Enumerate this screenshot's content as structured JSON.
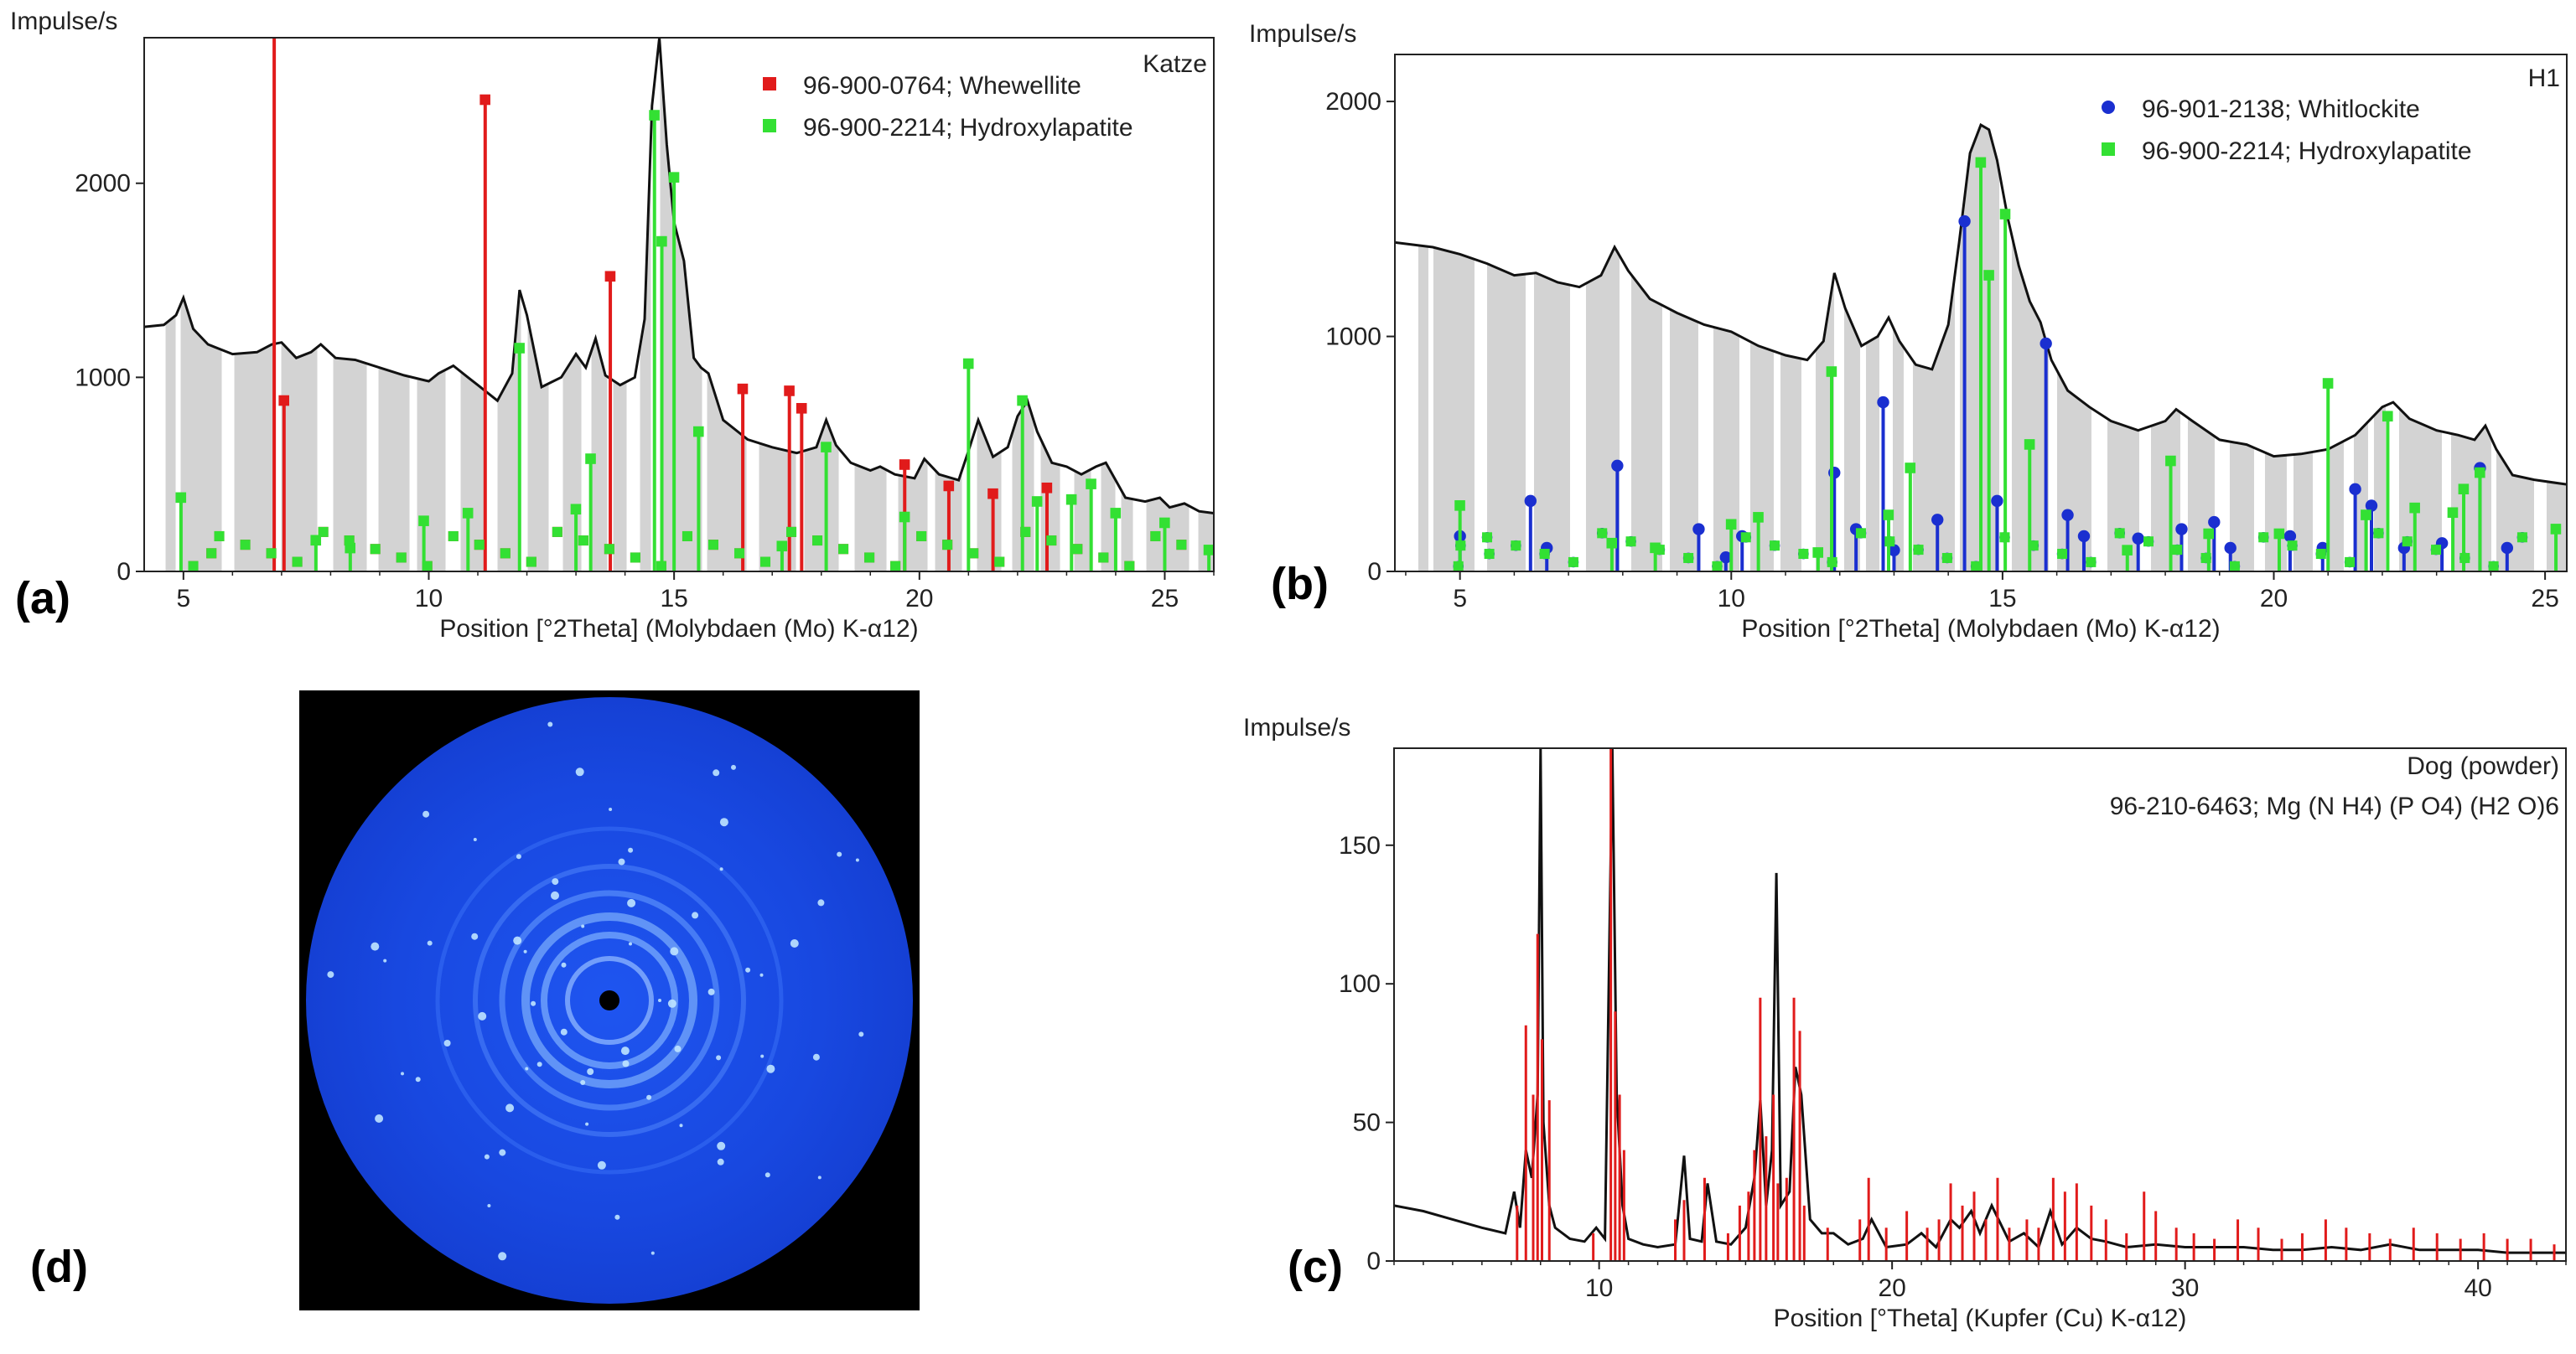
{
  "figure_labels": {
    "a": "(a)",
    "b": "(b)",
    "c": "(c)",
    "d": "(d)"
  },
  "colors": {
    "profile": "#111111",
    "fill": "#d3d3d3",
    "red": "#e11b1b",
    "green": "#33e033",
    "blue": "#1a2fd0",
    "ring_bg": "#1848e0"
  },
  "chart_data": [
    {
      "id": "a",
      "type": "line",
      "title": "Katze",
      "xlabel": "Position [°2Theta] (Molybdaen (Mo) K-α12)",
      "ylabel": "Impulse/s",
      "xlim": [
        4.2,
        26
      ],
      "ylim": [
        0,
        2750
      ],
      "xticks": [
        5,
        10,
        15,
        20,
        25
      ],
      "yticks": [
        0,
        1000,
        2000
      ],
      "legend": [
        {
          "label": "96-900-0764; Whewellite",
          "color": "#e11b1b",
          "marker": "square"
        },
        {
          "label": "96-900-2214; Hydroxylapatite",
          "color": "#33e033",
          "marker": "square"
        }
      ],
      "profile": {
        "x": [
          4.2,
          4.6,
          4.85,
          5.0,
          5.2,
          5.5,
          6,
          6.5,
          6.8,
          7.0,
          7.3,
          7.6,
          7.8,
          8.1,
          8.5,
          9,
          9.5,
          10,
          10.2,
          10.5,
          10.8,
          11,
          11.4,
          11.7,
          11.85,
          12.0,
          12.3,
          12.7,
          13.0,
          13.2,
          13.4,
          13.6,
          13.9,
          14.2,
          14.4,
          14.55,
          14.7,
          14.85,
          15.0,
          15.2,
          15.4,
          15.55,
          15.7,
          16,
          16.5,
          17,
          17.5,
          17.9,
          18.1,
          18.3,
          18.6,
          19,
          19.2,
          19.5,
          19.9,
          20.1,
          20.4,
          20.8,
          21.0,
          21.2,
          21.5,
          21.8,
          22.0,
          22.2,
          22.4,
          22.7,
          23,
          23.3,
          23.6,
          23.8,
          24,
          24.2,
          24.6,
          24.9,
          25.1,
          25.4,
          25.7,
          26
        ],
        "y": [
          1260,
          1270,
          1320,
          1410,
          1250,
          1170,
          1120,
          1130,
          1170,
          1180,
          1100,
          1130,
          1170,
          1100,
          1090,
          1050,
          1010,
          980,
          1020,
          1060,
          1000,
          960,
          880,
          1020,
          1450,
          1320,
          950,
          1000,
          1120,
          1050,
          1200,
          1010,
          960,
          1000,
          1300,
          2400,
          2750,
          2200,
          1800,
          1600,
          1100,
          1050,
          1020,
          780,
          680,
          640,
          610,
          640,
          780,
          650,
          560,
          520,
          540,
          500,
          480,
          580,
          500,
          470,
          620,
          780,
          590,
          640,
          800,
          880,
          720,
          560,
          540,
          500,
          540,
          560,
          470,
          380,
          360,
          380,
          330,
          350,
          310,
          300
        ]
      },
      "sticks": [
        {
          "color": "#e11b1b",
          "x": [
            6.85,
            7.05,
            11.15,
            13.7,
            16.4,
            17.35,
            17.6,
            19.7,
            20.6,
            21.5,
            22.6
          ],
          "y": [
            2850,
            880,
            2430,
            1520,
            940,
            930,
            840,
            550,
            440,
            400,
            430
          ]
        },
        {
          "color": "#33e033",
          "x": [
            4.95,
            7.7,
            8.4,
            9.9,
            10.8,
            11.85,
            13.0,
            13.3,
            14.6,
            14.75,
            15.0,
            15.5,
            17.2,
            18.1,
            19.7,
            21.0,
            22.1,
            22.4,
            23.1,
            23.5,
            24.0,
            25.0,
            25.9
          ],
          "y": [
            380,
            160,
            120,
            260,
            300,
            1150,
            320,
            580,
            2350,
            1700,
            2030,
            720,
            130,
            640,
            280,
            1070,
            880,
            360,
            370,
            450,
            300,
            250,
            110
          ]
        }
      ]
    },
    {
      "id": "b",
      "type": "line",
      "title": "H1",
      "xlabel": "Position [°2Theta] (Molybdaen (Mo) K-α12)",
      "ylabel": "Impulse/s",
      "xlim": [
        3.8,
        25.4
      ],
      "ylim": [
        0,
        2200
      ],
      "xticks": [
        5,
        10,
        15,
        20,
        25
      ],
      "yticks": [
        0,
        1000,
        2000
      ],
      "legend": [
        {
          "label": "96-901-2138; Whitlockite",
          "color": "#1a2fd0",
          "marker": "circle"
        },
        {
          "label": "96-900-2214; Hydroxylapatite",
          "color": "#33e033",
          "marker": "square"
        }
      ],
      "profile": {
        "x": [
          3.8,
          4.5,
          5.0,
          5.5,
          6.0,
          6.4,
          6.8,
          7.2,
          7.6,
          7.85,
          8.1,
          8.5,
          9,
          9.5,
          10,
          10.5,
          11,
          11.4,
          11.7,
          11.9,
          12.1,
          12.4,
          12.7,
          12.9,
          13.1,
          13.4,
          13.7,
          14.0,
          14.2,
          14.4,
          14.6,
          14.75,
          14.9,
          15.1,
          15.3,
          15.5,
          15.7,
          15.9,
          16.2,
          16.6,
          17,
          17.5,
          18,
          18.2,
          18.5,
          19,
          19.5,
          20,
          20.5,
          21,
          21.5,
          22,
          22.2,
          22.5,
          23,
          23.4,
          23.7,
          23.9,
          24.1,
          24.4,
          24.8,
          25.4
        ],
        "y": [
          1400,
          1380,
          1350,
          1310,
          1260,
          1270,
          1230,
          1210,
          1260,
          1380,
          1280,
          1160,
          1100,
          1050,
          1020,
          960,
          920,
          900,
          980,
          1270,
          1120,
          960,
          1000,
          1080,
          980,
          880,
          860,
          1050,
          1400,
          1780,
          1900,
          1880,
          1750,
          1500,
          1300,
          1150,
          1060,
          900,
          770,
          700,
          640,
          600,
          640,
          690,
          640,
          560,
          540,
          490,
          500,
          520,
          580,
          700,
          720,
          650,
          600,
          580,
          560,
          620,
          520,
          410,
          390,
          370
        ]
      },
      "sticks": [
        {
          "color": "#1a2fd0",
          "x": [
            5.0,
            6.3,
            6.6,
            7.9,
            9.4,
            9.9,
            10.2,
            11.9,
            12.3,
            12.8,
            13.0,
            13.8,
            14.3,
            14.9,
            15.8,
            16.2,
            16.5,
            17.5,
            18.3,
            18.9,
            19.2,
            20.3,
            20.9,
            21.5,
            21.8,
            22.4,
            23.1,
            23.8,
            24.3
          ],
          "y": [
            150,
            300,
            100,
            450,
            180,
            60,
            150,
            420,
            180,
            720,
            90,
            220,
            1490,
            300,
            970,
            240,
            150,
            140,
            180,
            210,
            100,
            150,
            100,
            350,
            280,
            100,
            120,
            440,
            100
          ]
        },
        {
          "color": "#33e033",
          "x": [
            5.0,
            7.8,
            8.6,
            10.0,
            10.5,
            11.6,
            11.85,
            12.9,
            13.3,
            14.6,
            14.75,
            15.05,
            15.5,
            17.3,
            18.1,
            18.8,
            20.1,
            21.0,
            21.7,
            22.1,
            22.6,
            23.3,
            23.5,
            23.8,
            25.2
          ],
          "y": [
            280,
            120,
            100,
            200,
            230,
            80,
            850,
            240,
            440,
            1740,
            1260,
            1520,
            540,
            90,
            470,
            160,
            160,
            800,
            240,
            660,
            270,
            250,
            350,
            420,
            180
          ]
        }
      ]
    },
    {
      "id": "c",
      "type": "line",
      "title": "Dog (powder)",
      "xlabel": "Position [°Theta] (Kupfer (Cu) K-α12)",
      "ylabel": "Impulse/s",
      "xlim": [
        3,
        43
      ],
      "ylim": [
        0,
        185
      ],
      "xticks": [
        10,
        20,
        30,
        40
      ],
      "yticks": [
        0,
        50,
        100,
        150
      ],
      "legend": [
        {
          "label": "96-210-6463; Mg (N H4) (P O4) (H2 O)6",
          "color": "#e11b1b",
          "marker": "line"
        }
      ],
      "profile": {
        "x": [
          3,
          4,
          5,
          6,
          6.8,
          7.1,
          7.3,
          7.5,
          7.7,
          7.9,
          8.0,
          8.1,
          8.3,
          8.5,
          9,
          9.5,
          9.9,
          10.2,
          10.45,
          10.6,
          10.8,
          11.0,
          11.5,
          12,
          12.6,
          12.9,
          13.1,
          13.5,
          13.7,
          14,
          14.5,
          15,
          15.3,
          15.5,
          15.7,
          15.9,
          16.05,
          16.2,
          16.5,
          16.7,
          16.9,
          17.2,
          17.6,
          18,
          18.5,
          19,
          19.3,
          19.8,
          20.5,
          21,
          21.5,
          22,
          22.3,
          22.7,
          23,
          23.4,
          24,
          24.5,
          25,
          25.4,
          25.8,
          26.3,
          26.8,
          27.3,
          28,
          29,
          30,
          31,
          32,
          33,
          34,
          35,
          36,
          37,
          38,
          39,
          40,
          41,
          42,
          43
        ],
        "y": [
          20,
          18,
          15,
          12,
          10,
          25,
          12,
          40,
          30,
          60,
          185,
          50,
          20,
          12,
          8,
          7,
          12,
          8,
          185,
          60,
          20,
          8,
          6,
          5,
          6,
          38,
          8,
          7,
          28,
          7,
          6,
          12,
          30,
          58,
          20,
          40,
          140,
          20,
          25,
          70,
          60,
          15,
          10,
          10,
          6,
          8,
          15,
          5,
          6,
          10,
          5,
          15,
          12,
          18,
          10,
          20,
          7,
          10,
          5,
          18,
          6,
          12,
          8,
          7,
          5,
          6,
          5,
          5,
          5,
          4,
          4,
          5,
          4,
          6,
          4,
          4,
          4,
          3,
          3,
          3
        ]
      },
      "sticks": [
        {
          "color": "#e11b1b",
          "x": [
            7.2,
            7.5,
            7.75,
            7.9,
            8.05,
            8.3,
            9.8,
            10.4,
            10.55,
            10.7,
            10.85,
            12.6,
            12.9,
            13.6,
            14.4,
            14.8,
            15.1,
            15.3,
            15.5,
            15.7,
            15.95,
            16.1,
            16.4,
            16.65,
            16.85,
            17.0,
            17.8,
            18.9,
            19.2,
            19.8,
            20.5,
            21.2,
            21.6,
            22.0,
            22.4,
            22.8,
            23.2,
            23.6,
            24.0,
            24.6,
            25.0,
            25.5,
            25.9,
            26.3,
            26.8,
            27.3,
            28.0,
            28.6,
            29.0,
            29.7,
            30.3,
            31.0,
            31.8,
            32.5,
            33.3,
            34.0,
            34.8,
            35.5,
            36.3,
            37.0,
            37.8,
            38.6,
            39.4,
            40.2,
            41.0,
            41.8,
            42.6
          ],
          "y": [
            20,
            85,
            60,
            118,
            80,
            58,
            10,
            185,
            90,
            60,
            40,
            15,
            22,
            30,
            10,
            20,
            25,
            40,
            95,
            45,
            60,
            28,
            30,
            95,
            83,
            20,
            12,
            15,
            30,
            12,
            18,
            12,
            15,
            28,
            20,
            25,
            15,
            30,
            12,
            15,
            12,
            30,
            25,
            28,
            20,
            15,
            10,
            25,
            18,
            12,
            10,
            8,
            15,
            12,
            8,
            10,
            15,
            12,
            10,
            8,
            12,
            10,
            8,
            10,
            8,
            8,
            6
          ]
        }
      ]
    }
  ]
}
